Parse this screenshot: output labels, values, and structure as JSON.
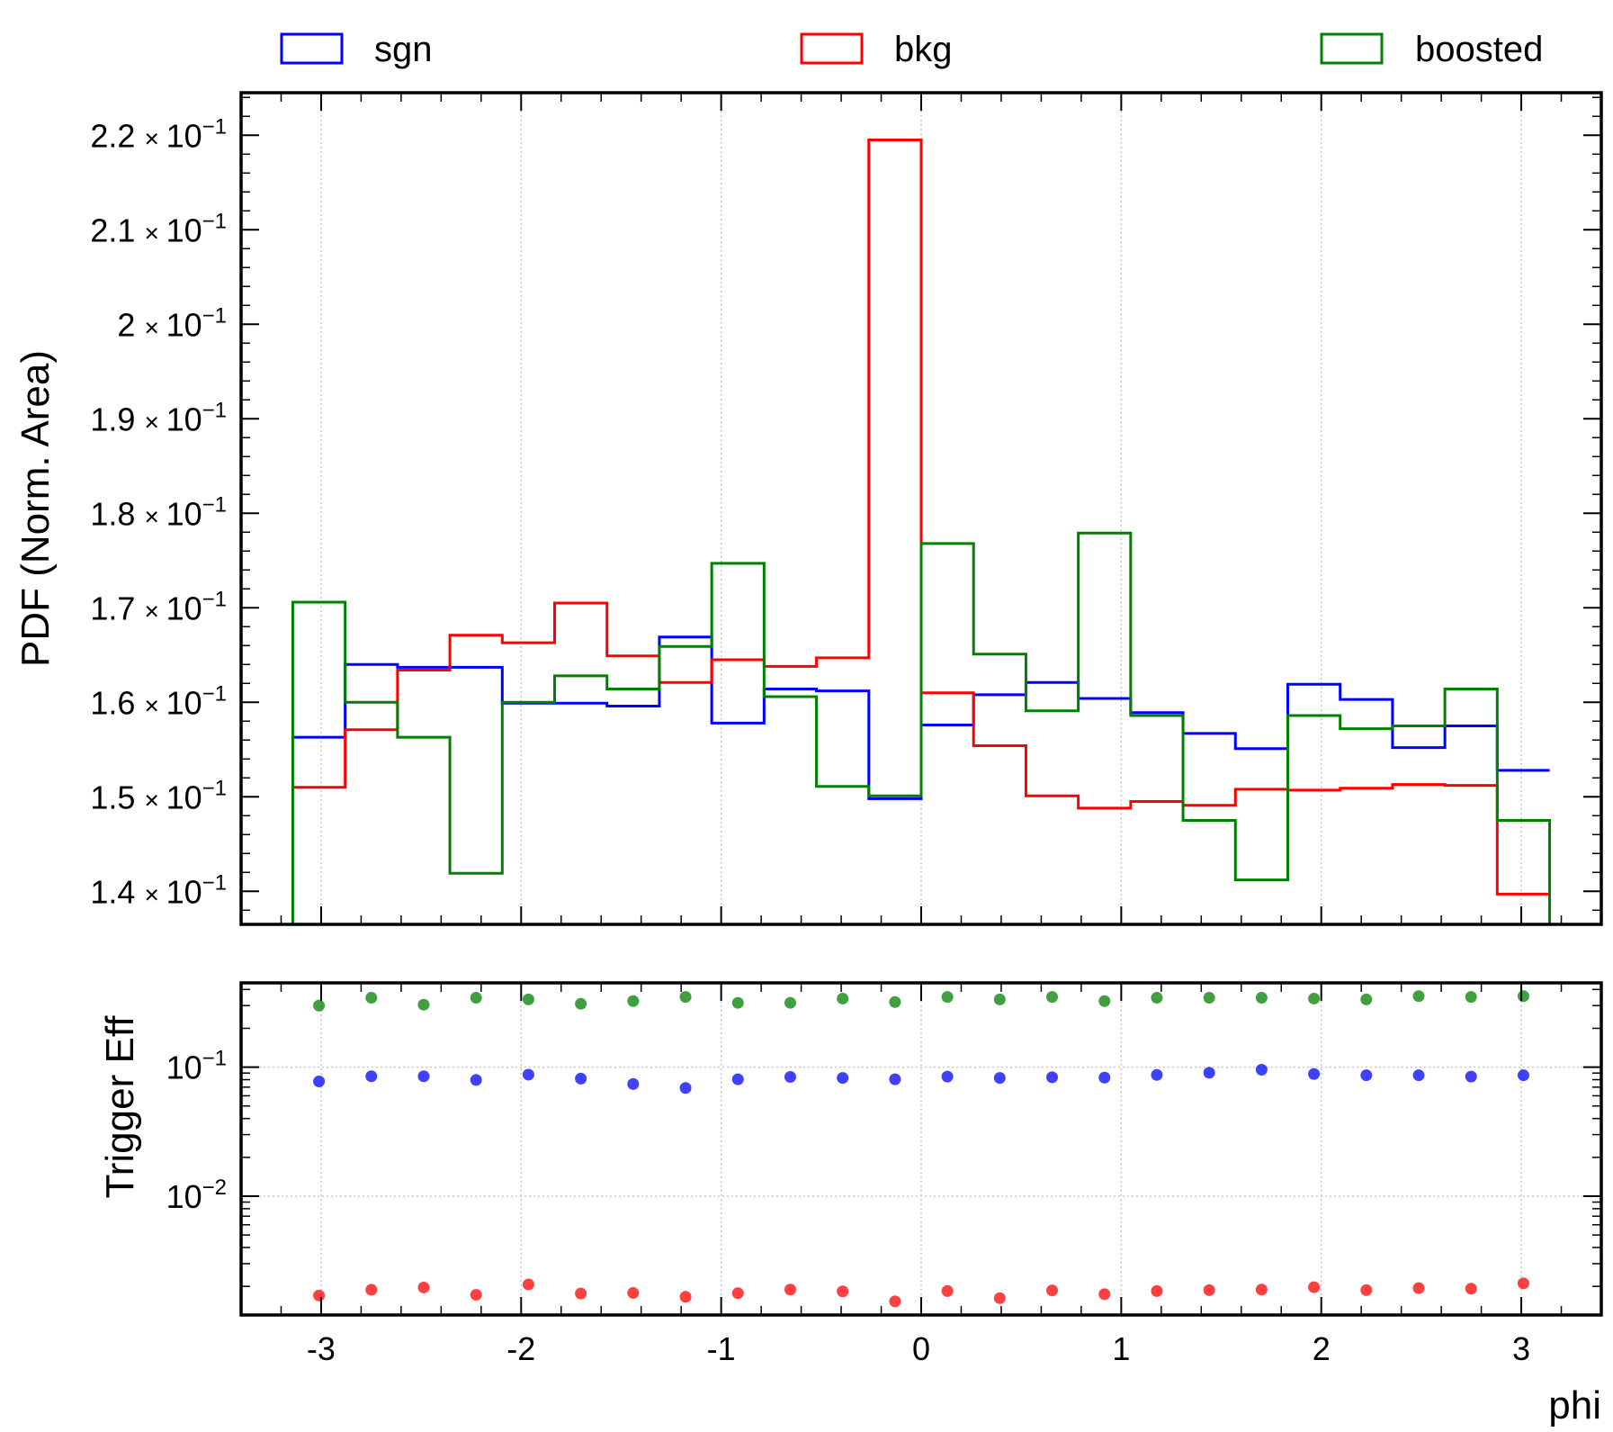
{
  "legend": [
    {
      "label": "sgn",
      "color": "#0000ff"
    },
    {
      "label": "bkg",
      "color": "#ff0000"
    },
    {
      "label": "boosted",
      "color": "#008000"
    }
  ],
  "chart_data": [
    {
      "type": "step",
      "ylabel": "PDF (Norm. Area)",
      "xlim": [
        -3.4,
        3.4
      ],
      "ylim": [
        0.1365,
        0.2245
      ],
      "y_ticks": [
        {
          "value": 0.14,
          "mantissa": "1.4"
        },
        {
          "value": 0.15,
          "mantissa": "1.5"
        },
        {
          "value": 0.16,
          "mantissa": "1.6"
        },
        {
          "value": 0.17,
          "mantissa": "1.7"
        },
        {
          "value": 0.18,
          "mantissa": "1.8"
        },
        {
          "value": 0.19,
          "mantissa": "1.9"
        },
        {
          "value": 0.2,
          "mantissa": "2"
        },
        {
          "value": 0.21,
          "mantissa": "2.1"
        },
        {
          "value": 0.22,
          "mantissa": "2.2"
        }
      ],
      "y_exponent_label": "× 10",
      "y_exponent": "−1",
      "x_ticks": [
        -3,
        -2,
        -1,
        0,
        1,
        2,
        3
      ],
      "grid": "x-dotted",
      "bin_edges": [
        -3.1416,
        -2.8798,
        -2.618,
        -2.3562,
        -2.0944,
        -1.8326,
        -1.5708,
        -1.309,
        -1.0472,
        -0.7854,
        -0.5236,
        -0.2618,
        0.0,
        0.2618,
        0.5236,
        0.7854,
        1.0472,
        1.309,
        1.5708,
        1.8326,
        2.0944,
        2.3562,
        2.618,
        2.8798,
        3.1416
      ],
      "series": [
        {
          "name": "sgn",
          "color": "#0000ff",
          "values": [
            0.1563,
            0.164,
            0.1637,
            0.1637,
            0.1599,
            0.1599,
            0.1596,
            0.1669,
            0.1578,
            0.1614,
            0.1612,
            0.1498,
            0.1576,
            0.1608,
            0.1621,
            0.1604,
            0.1589,
            0.1567,
            0.1551,
            0.1619,
            0.1603,
            0.1552,
            0.1575,
            0.1528
          ]
        },
        {
          "name": "bkg",
          "color": "#ff0000",
          "values": [
            0.151,
            0.1571,
            0.1634,
            0.1671,
            0.1663,
            0.1705,
            0.1649,
            0.1621,
            0.1645,
            0.1638,
            0.1647,
            0.2195,
            0.161,
            0.1554,
            0.1501,
            0.1488,
            0.1495,
            0.1491,
            0.1508,
            0.1507,
            0.1509,
            0.1513,
            0.1512,
            0.1397
          ]
        },
        {
          "name": "boosted",
          "color": "#008000",
          "values": [
            0.1706,
            0.16,
            0.1563,
            0.1419,
            0.16,
            0.1628,
            0.1614,
            0.1659,
            0.1747,
            0.1606,
            0.1511,
            0.1501,
            0.1768,
            0.1651,
            0.1591,
            0.1779,
            0.1586,
            0.1475,
            0.1412,
            0.1586,
            0.1572,
            0.1575,
            0.1614,
            0.1475
          ]
        }
      ],
      "boosted_outer_edges_to_axis_bottom": true
    },
    {
      "type": "scatter",
      "ylabel": "Trigger Eff",
      "xlabel": "phi",
      "yscale": "log",
      "ylim": [
        0.0012,
        0.45
      ],
      "y_ticks": [
        {
          "value": 0.1,
          "base": "10",
          "exp": "−1"
        },
        {
          "value": 0.01,
          "base": "10",
          "exp": "−2"
        }
      ],
      "x_ticks": [
        -3,
        -2,
        -1,
        0,
        1,
        2,
        3
      ],
      "grid": "xy-dotted",
      "x": [
        -3.0107,
        -2.7489,
        -2.4871,
        -2.2253,
        -1.9635,
        -1.7017,
        -1.4399,
        -1.1781,
        -0.9163,
        -0.6545,
        -0.3927,
        -0.1309,
        0.1309,
        0.3927,
        0.6545,
        0.9163,
        1.1781,
        1.4399,
        1.7017,
        1.9635,
        2.2253,
        2.4871,
        2.7489,
        3.0107
      ],
      "series": [
        {
          "name": "boosted",
          "color": "#008000",
          "values": [
            0.3,
            0.345,
            0.305,
            0.345,
            0.335,
            0.31,
            0.325,
            0.35,
            0.315,
            0.315,
            0.34,
            0.32,
            0.35,
            0.335,
            0.35,
            0.325,
            0.345,
            0.345,
            0.345,
            0.34,
            0.335,
            0.355,
            0.35,
            0.355
          ]
        },
        {
          "name": "sgn",
          "color": "#0000ff",
          "values": [
            0.0775,
            0.085,
            0.085,
            0.0795,
            0.0875,
            0.0815,
            0.074,
            0.069,
            0.0805,
            0.084,
            0.0825,
            0.0805,
            0.0845,
            0.0825,
            0.0835,
            0.083,
            0.087,
            0.0905,
            0.0955,
            0.0885,
            0.0865,
            0.0865,
            0.0845,
            0.0865
          ]
        },
        {
          "name": "bkg",
          "color": "#ff0000",
          "values": [
            0.0017,
            0.00188,
            0.00196,
            0.00172,
            0.00207,
            0.00176,
            0.00178,
            0.00166,
            0.00177,
            0.00189,
            0.00183,
            0.00153,
            0.00184,
            0.00162,
            0.00186,
            0.00174,
            0.00184,
            0.00187,
            0.00189,
            0.00197,
            0.00187,
            0.00194,
            0.00192,
            0.00211
          ]
        }
      ]
    }
  ]
}
